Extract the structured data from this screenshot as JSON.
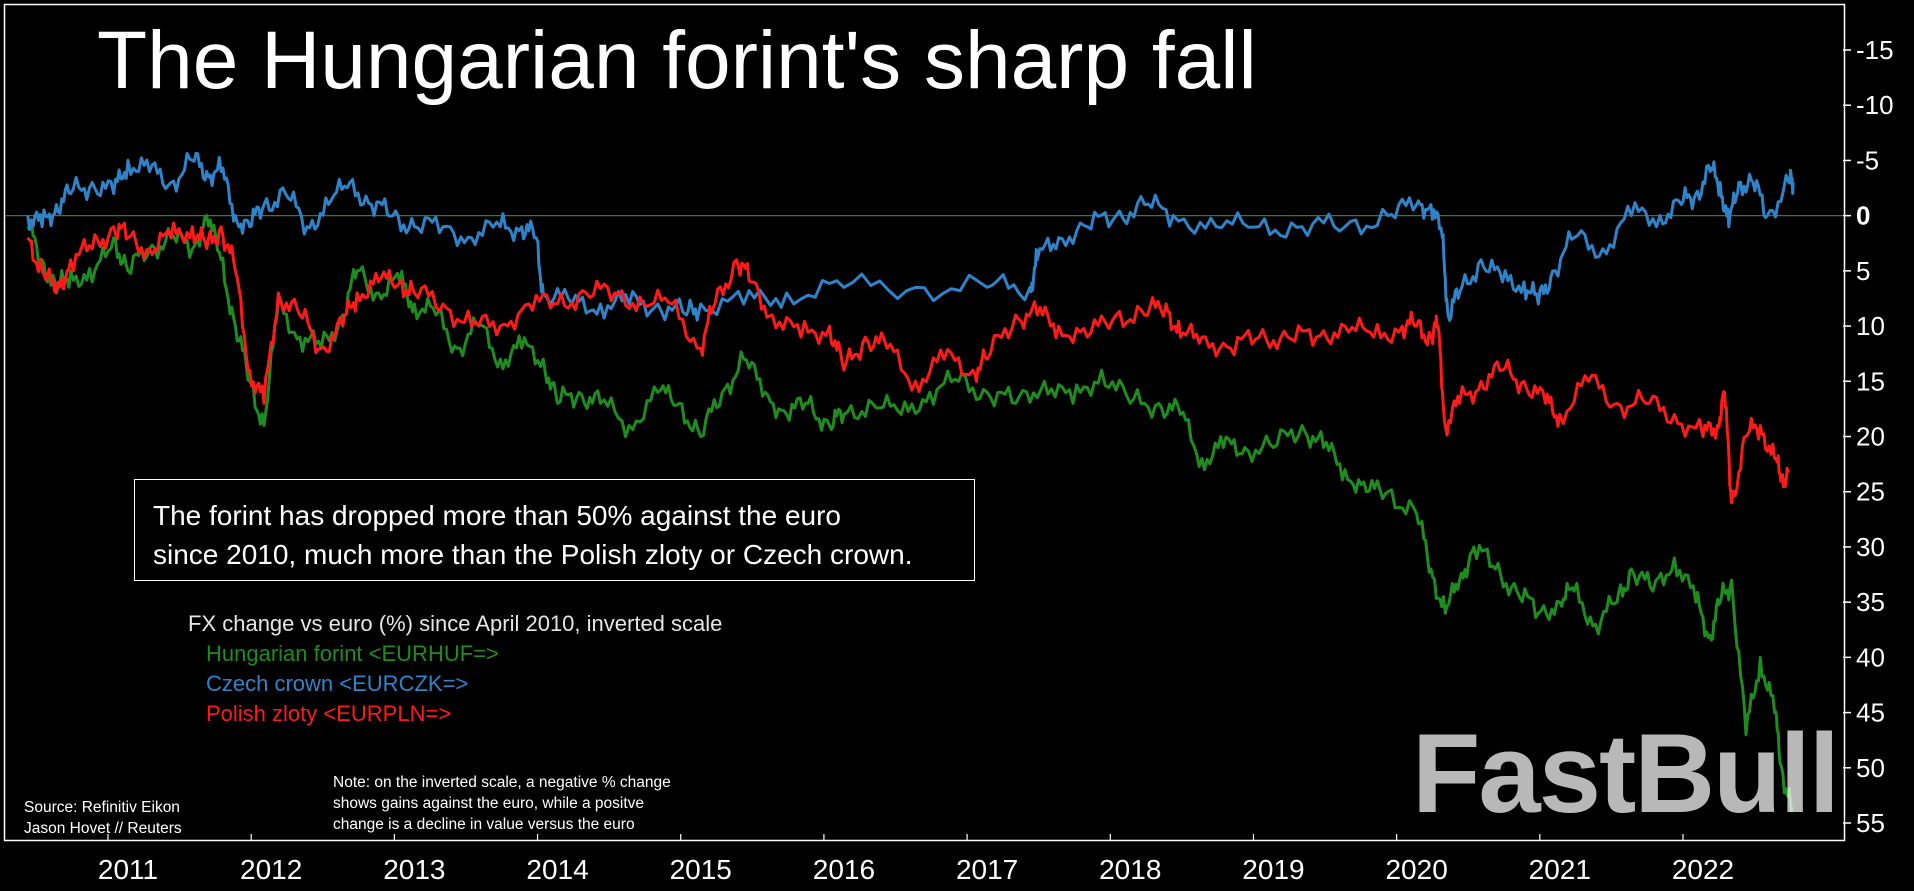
{
  "title": "The Hungarian forint's sharp fall",
  "annotation": {
    "line1": "The forint has dropped more than 50% against the euro",
    "line2": "since 2010, much more than the Polish zloty or Czech crown."
  },
  "legend": {
    "heading": "FX change vs euro (%) since April 2010, inverted scale",
    "items": [
      {
        "label": "Hungarian forint <EURHUF=>",
        "color": "#1f8c1f"
      },
      {
        "label": "Czech crown <EURCZK=>",
        "color": "#2f83c9"
      },
      {
        "label": "Polish zloty <EURPLN=>",
        "color": "#ff1a1a"
      }
    ]
  },
  "footnote": {
    "line1": "Note: on the inverted scale, a negative % change",
    "line2": "shows gains against the euro, while a positve",
    "line3": "change is a decline in value versus the euro"
  },
  "source": {
    "line1": "Source: Refinitiv Eikon",
    "line2": "Jason Hovet // Reuters"
  },
  "watermark": "FastBull",
  "chart_data": {
    "type": "line",
    "inverted_y": true,
    "ylim": [
      -18,
      57
    ],
    "xlim": [
      2010.3,
      2022.75
    ],
    "y_ticks": [
      -15,
      -10,
      -5,
      0,
      5,
      10,
      15,
      20,
      25,
      30,
      35,
      40,
      45,
      50,
      55
    ],
    "y_tick_labels": [
      "-15",
      "-10",
      "-5",
      "0",
      "5",
      "10",
      "15",
      "20",
      "25",
      "30",
      "35",
      "40",
      "45",
      "50",
      "55"
    ],
    "x_ticks": [
      2011,
      2012,
      2013,
      2014,
      2015,
      2016,
      2017,
      2018,
      2019,
      2020,
      2021,
      2022
    ],
    "x_tick_labels": [
      "2011",
      "2012",
      "2013",
      "2014",
      "2015",
      "2016",
      "2017",
      "2018",
      "2019",
      "2020",
      "2021",
      "2022"
    ],
    "zero_line": true,
    "zero_line_color": "#2e7d32",
    "series": [
      {
        "name": "Hungarian forint <EURHUF=>",
        "color": "#1f8c1f",
        "x": [
          2010.3,
          2010.4,
          2010.5,
          2010.6,
          2010.75,
          2010.9,
          2011.0,
          2011.15,
          2011.3,
          2011.45,
          2011.55,
          2011.65,
          2011.75,
          2011.85,
          2011.95,
          2012.05,
          2012.2,
          2012.35,
          2012.5,
          2012.6,
          2012.75,
          2012.9,
          2013.0,
          2013.15,
          2013.3,
          2013.45,
          2013.6,
          2013.75,
          2013.9,
          2014.0,
          2014.15,
          2014.3,
          2014.5,
          2014.7,
          2014.85,
          2015.0,
          2015.15,
          2015.3,
          2015.45,
          2015.6,
          2015.75,
          2015.9,
          2016.0,
          2016.2,
          2016.4,
          2016.6,
          2016.8,
          2017.0,
          2017.2,
          2017.4,
          2017.6,
          2017.8,
          2018.0,
          2018.2,
          2018.35,
          2018.5,
          2018.65,
          2018.8,
          2019.0,
          2019.2,
          2019.35,
          2019.5,
          2019.65,
          2019.8,
          2020.0,
          2020.1,
          2020.2,
          2020.3,
          2020.4,
          2020.55,
          2020.7,
          2020.85,
          2021.0,
          2021.1,
          2021.25,
          2021.4,
          2021.5,
          2021.65,
          2021.8,
          2021.95,
          2022.05,
          2022.12,
          2022.2,
          2022.3,
          2022.4,
          2022.5,
          2022.55,
          2022.62
        ],
        "values": [
          1,
          4,
          7,
          5,
          6,
          2,
          5,
          3,
          2,
          3,
          0,
          4,
          10,
          15,
          19,
          8,
          11,
          12,
          9,
          5,
          7,
          6,
          8,
          9,
          12,
          10,
          13,
          12,
          13,
          17,
          16,
          17,
          19,
          16,
          17,
          20,
          16,
          13,
          16,
          18,
          17,
          19,
          18,
          17,
          18,
          16,
          15,
          16,
          17,
          15,
          17,
          14,
          17,
          17,
          18,
          22,
          21,
          21,
          21,
          19,
          21,
          23,
          25,
          25,
          27,
          32,
          36,
          33,
          30,
          32,
          34,
          36,
          35,
          34,
          37,
          35,
          32,
          34,
          31,
          35,
          38,
          35,
          33,
          47,
          40,
          45,
          50,
          54
        ]
      },
      {
        "name": "Czech crown <EURCZK=>",
        "color": "#2f83c9",
        "x": [
          2010.3,
          2010.4,
          2010.5,
          2010.6,
          2010.75,
          2010.9,
          2011.0,
          2011.15,
          2011.3,
          2011.45,
          2011.55,
          2011.65,
          2011.75,
          2011.85,
          2011.95,
          2012.1,
          2012.25,
          2012.4,
          2012.55,
          2012.7,
          2012.85,
          2013.0,
          2013.2,
          2013.4,
          2013.6,
          2013.75,
          2013.85,
          2013.9,
          2014.1,
          2014.3,
          2014.5,
          2014.7,
          2014.9,
          2015.0,
          2015.3,
          2015.6,
          2016.0,
          2016.5,
          2017.0,
          2017.3,
          2017.35,
          2017.5,
          2017.7,
          2017.9,
          2018.1,
          2018.3,
          2018.6,
          2018.9,
          2019.2,
          2019.5,
          2019.8,
          2020.0,
          2020.1,
          2020.18,
          2020.22,
          2020.3,
          2020.45,
          2020.6,
          2020.75,
          2020.85,
          2020.95,
          2021.1,
          2021.3,
          2021.5,
          2021.7,
          2021.85,
          2021.95,
          2022.05,
          2022.12,
          2022.18,
          2022.25,
          2022.35,
          2022.45,
          2022.6,
          2022.63
        ],
        "values": [
          0,
          1,
          -1,
          -2,
          -3,
          -2,
          -5,
          -4,
          -3,
          -5,
          -4,
          -4,
          0,
          1,
          -1,
          -2,
          1,
          -1,
          -3,
          -1,
          0,
          1,
          1,
          2,
          1,
          1,
          2,
          7,
          8,
          8,
          8,
          8,
          9,
          8,
          8,
          7,
          6.5,
          6.5,
          6.5,
          6.5,
          4,
          2,
          1,
          0,
          -1,
          0,
          1,
          1,
          1,
          1,
          0,
          -1,
          -1,
          2,
          9,
          7,
          4,
          6,
          6,
          8,
          5,
          2,
          3,
          0,
          0,
          -1,
          -2,
          -4,
          -3,
          1,
          -3,
          -3,
          0,
          -3,
          -3
        ]
      },
      {
        "name": "Polish zloty <EURPLN=>",
        "color": "#ff1a1a",
        "x": [
          2010.3,
          2010.4,
          2010.5,
          2010.6,
          2010.75,
          2010.9,
          2011.0,
          2011.15,
          2011.3,
          2011.45,
          2011.55,
          2011.65,
          2011.75,
          2011.85,
          2011.95,
          2012.05,
          2012.2,
          2012.35,
          2012.5,
          2012.6,
          2012.75,
          2012.9,
          2013.0,
          2013.2,
          2013.4,
          2013.6,
          2013.8,
          2014.0,
          2014.2,
          2014.4,
          2014.6,
          2014.8,
          2015.0,
          2015.1,
          2015.25,
          2015.35,
          2015.5,
          2015.7,
          2015.9,
          2016.0,
          2016.15,
          2016.3,
          2016.5,
          2016.7,
          2016.9,
          2017.0,
          2017.2,
          2017.35,
          2017.5,
          2017.7,
          2017.9,
          2018.1,
          2018.25,
          2018.35,
          2018.5,
          2018.7,
          2018.9,
          2019.1,
          2019.3,
          2019.5,
          2019.7,
          2019.9,
          2020.0,
          2020.1,
          2020.15,
          2020.2,
          2020.3,
          2020.45,
          2020.6,
          2020.75,
          2020.9,
          2021.0,
          2021.2,
          2021.4,
          2021.6,
          2021.8,
          2022.0,
          2022.1,
          2022.15,
          2022.2,
          2022.3,
          2022.4,
          2022.5,
          2022.55,
          2022.6
        ],
        "values": [
          2,
          5,
          7,
          4,
          3,
          1,
          2,
          3,
          2,
          1,
          3,
          1,
          5,
          14,
          17,
          7,
          9,
          12,
          10,
          7,
          6,
          6,
          7,
          8,
          10,
          10,
          8,
          8,
          7,
          7,
          8,
          8,
          12,
          8,
          4,
          6,
          9,
          11,
          10,
          14,
          11,
          12,
          15,
          13,
          14,
          13,
          9,
          9,
          10,
          11,
          9,
          9,
          8,
          11,
          11,
          12,
          11,
          11,
          11,
          10,
          11,
          10,
          10,
          11,
          10,
          19,
          17,
          15,
          14,
          15,
          17,
          18,
          15,
          17,
          17,
          18,
          20,
          19,
          16,
          26,
          20,
          19,
          22,
          24,
          23
        ]
      }
    ]
  }
}
